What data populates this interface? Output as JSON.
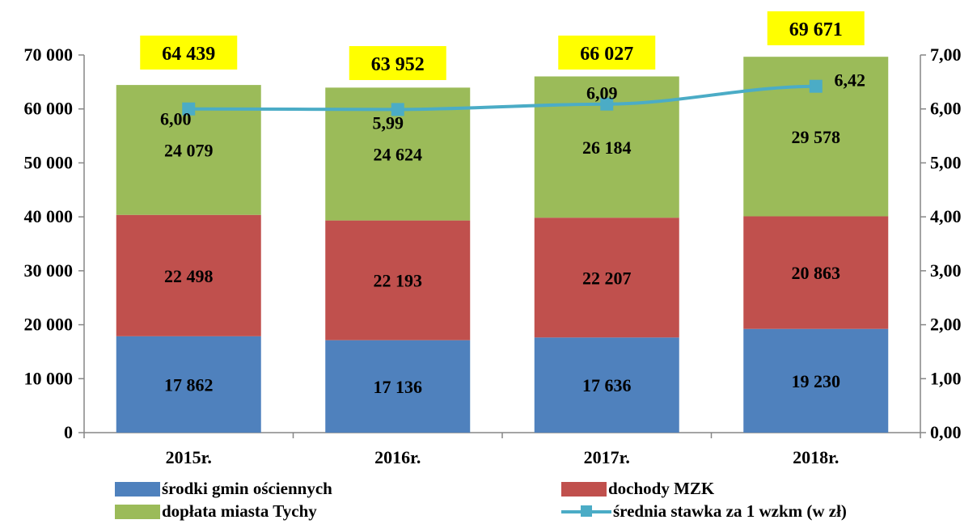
{
  "chart_data": {
    "type": "bar",
    "stacked": true,
    "categories": [
      "2015r.",
      "2016r.",
      "2017r.",
      "2018r."
    ],
    "series": [
      {
        "name": "środki gmin ościennych",
        "color": "#4f81bd",
        "values": [
          17862,
          17136,
          17636,
          19230
        ],
        "labels": [
          "17 862",
          "17 136",
          "17 636",
          "19 230"
        ]
      },
      {
        "name": "dochody MZK",
        "color": "#c0504d",
        "values": [
          22498,
          22193,
          22207,
          20863
        ],
        "labels": [
          "22 498",
          "22 193",
          "22 207",
          "20 863"
        ]
      },
      {
        "name": "dopłata miasta Tychy",
        "color": "#9bbb59",
        "values": [
          24079,
          24624,
          26184,
          29578
        ],
        "labels": [
          "24 079",
          "24 624",
          "26 184",
          "29 578"
        ]
      }
    ],
    "line_series": {
      "name": "średnia stawka za 1 wzkm (w zł)",
      "color": "#4bacc6",
      "axis": "secondary",
      "values": [
        6.0,
        5.99,
        6.09,
        6.42
      ],
      "labels": [
        "6,00",
        "5,99",
        "6,09",
        "6,42"
      ]
    },
    "totals": {
      "values": [
        64439,
        63952,
        66027,
        69671
      ],
      "labels": [
        "64 439",
        "63 952",
        "66 027",
        "69 671"
      ],
      "highlight_color": "#ffff00"
    },
    "ylim": [
      0,
      70000
    ],
    "y2lim": [
      0,
      7
    ],
    "yticks": [
      "0",
      "10 000",
      "20 000",
      "30 000",
      "40 000",
      "50 000",
      "60 000",
      "70 000"
    ],
    "y2ticks": [
      "0,00",
      "1,00",
      "2,00",
      "3,00",
      "4,00",
      "5,00",
      "6,00",
      "7,00"
    ],
    "grid": false,
    "legend_position": "bottom"
  },
  "legend": [
    {
      "label": "środki gmin ościennych",
      "kind": "box",
      "color": "#4f81bd"
    },
    {
      "label": "dochody MZK",
      "kind": "box",
      "color": "#c0504d"
    },
    {
      "label": "dopłata miasta Tychy",
      "kind": "box",
      "color": "#9bbb59"
    },
    {
      "label": "średnia stawka za 1 wzkm (w zł)",
      "kind": "line",
      "color": "#4bacc6"
    }
  ]
}
